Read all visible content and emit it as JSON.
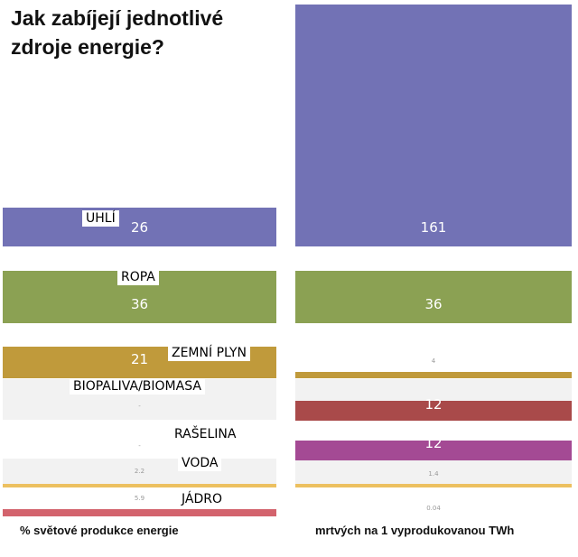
{
  "title": {
    "line1": "Jak zabíjejí jednotlivé",
    "line2": "zdroje energie?"
  },
  "chart_data": [
    {
      "type": "bar",
      "categories": [
        "UHLÍ",
        "ROPA",
        "ZEMNÍ PLYN",
        "BIOPALIVA/BIOMASA",
        "RAŠELINA",
        "VODA",
        "JÁDRO"
      ],
      "values": [
        26,
        36,
        21,
        null,
        null,
        2.2,
        5.9
      ],
      "value_labels": [
        "26",
        "36",
        "21",
        "-",
        "-",
        "2.2",
        "5.9"
      ],
      "xlabel": "% světové produkce energie",
      "xlim": [
        0,
        36
      ]
    },
    {
      "type": "bar",
      "categories": [
        "UHLÍ",
        "ROPA",
        "ZEMNÍ PLYN",
        "BIOPALIVA/BIOMASA",
        "RAŠELINA",
        "VODA",
        "JÁDRO"
      ],
      "values": [
        161,
        36,
        4,
        12,
        12,
        1.4,
        0.04
      ],
      "value_labels": [
        "161",
        "36",
        "4",
        "12",
        "12",
        "1.4",
        "0.04"
      ],
      "xlabel": "mrtvých na 1 vyprodukovanou TWh",
      "ylim": [
        0,
        161
      ]
    }
  ],
  "colors": {
    "UHLÍ": "#7272b5",
    "ROPA": "#8ba153",
    "ZEMNÍ PLYN": "#c09a3b",
    "BIOPALIVA/BIOMASA": "#a94a4a",
    "RAŠELINA": "#a44a94",
    "VODA": "#ecc060",
    "JÁDRO": "#d3636d"
  }
}
